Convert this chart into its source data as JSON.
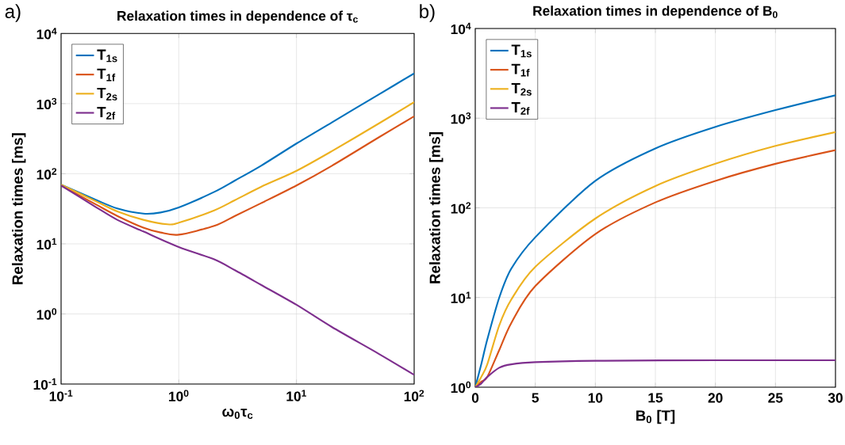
{
  "chart_data": [
    {
      "type": "line",
      "title": "Relaxation times in dependence of τ$_{c}$",
      "xlabel": "ω$_{0}$τ$_{c}$",
      "ylabel": "Relaxation times [ms]",
      "annotations": [
        "a)"
      ],
      "log": "xy",
      "grid": true,
      "legend": "top left",
      "xlim": [
        0.1,
        100
      ],
      "ylim": [
        0.1,
        10000
      ],
      "xticks": [
        {
          "value": 0.1,
          "label": "10$^{-1}$"
        },
        {
          "value": 1,
          "label": "10$^{0}$"
        },
        {
          "value": 10,
          "label": "10$^{1}$"
        },
        {
          "value": 100,
          "label": "10$^{2}$"
        }
      ],
      "yticks": [
        {
          "value": 0.1,
          "label": "10$^{-1}$"
        },
        {
          "value": 1,
          "label": "10$^{0}$"
        },
        {
          "value": 10,
          "label": "10$^{1}$"
        },
        {
          "value": 100,
          "label": "10$^{2}$"
        },
        {
          "value": 1000,
          "label": "10$^{3}$"
        },
        {
          "value": 10000,
          "label": "10$^{4}$"
        }
      ],
      "series": [
        {
          "name": "T$_{1s}$",
          "color": "#0072bd",
          "x": [
            0.1,
            0.2,
            0.3,
            0.5,
            0.7,
            1,
            2,
            3,
            5,
            10,
            20,
            50,
            100
          ],
          "values": [
            70,
            42,
            32,
            27,
            28,
            33,
            55,
            80,
            130,
            270,
            540,
            1350,
            2700
          ]
        },
        {
          "name": "T$_{1f}$",
          "color": "#d95319",
          "x": [
            0.1,
            0.2,
            0.3,
            0.5,
            0.7,
            1,
            2,
            3,
            5,
            10,
            20,
            50,
            100
          ],
          "values": [
            68,
            36,
            25,
            17,
            14.5,
            13.5,
            18,
            25,
            38,
            68,
            130,
            330,
            660
          ]
        },
        {
          "name": "T$_{2s}$",
          "color": "#edb120",
          "x": [
            0.1,
            0.2,
            0.3,
            0.5,
            0.8,
            1,
            2,
            3,
            5,
            10,
            20,
            50,
            100
          ],
          "values": [
            70,
            40,
            29,
            22,
            19,
            20,
            30,
            42,
            65,
            110,
            210,
            520,
            1050
          ]
        },
        {
          "name": "T$_{2f}$",
          "color": "#7e2f8e",
          "x": [
            0.1,
            0.2,
            0.3,
            0.5,
            1,
            2,
            3,
            5,
            10,
            20,
            50,
            100
          ],
          "values": [
            68,
            33,
            22,
            15,
            9,
            6,
            4.2,
            2.6,
            1.35,
            0.65,
            0.27,
            0.135
          ]
        }
      ]
    },
    {
      "type": "line",
      "title": "Relaxation times in dependence of B$_{0}$",
      "xlabel": "B$_{0}$ [T]",
      "ylabel": "Relaxation times [ms]",
      "annotations": [
        "b)"
      ],
      "log": "y",
      "grid": true,
      "legend": "top left",
      "xlim": [
        0,
        30
      ],
      "ylim": [
        1,
        10000
      ],
      "xticks": [
        0,
        5,
        10,
        15,
        20,
        25,
        30
      ],
      "yticks": [
        {
          "value": 1,
          "label": "10$^{0}$"
        },
        {
          "value": 10,
          "label": "10$^{1}$"
        },
        {
          "value": 100,
          "label": "10$^{2}$"
        },
        {
          "value": 1000,
          "label": "10$^{3}$"
        },
        {
          "value": 10000,
          "label": "10$^{4}$"
        }
      ],
      "series": [
        {
          "name": "T$_{1s}$",
          "color": "#0072bd",
          "x": [
            0,
            0.5,
            1,
            2,
            3,
            5,
            10,
            15,
            20,
            25,
            30
          ],
          "values": [
            1,
            1.8,
            3.4,
            10,
            21,
            47,
            200,
            460,
            800,
            1230,
            1800
          ]
        },
        {
          "name": "T$_{1f}$",
          "color": "#d95319",
          "x": [
            0,
            0.5,
            1,
            2,
            3,
            5,
            10,
            15,
            20,
            25,
            30
          ],
          "values": [
            1,
            1.15,
            1.3,
            2.6,
            5.2,
            13.4,
            51,
            115,
            200,
            310,
            440
          ]
        },
        {
          "name": "T$_{2s}$",
          "color": "#edb120",
          "x": [
            0,
            0.5,
            1,
            2,
            3,
            5,
            10,
            15,
            20,
            25,
            30
          ],
          "values": [
            1,
            1.3,
            1.8,
            4.9,
            9.5,
            22,
            76,
            175,
            310,
            490,
            700
          ]
        },
        {
          "name": "T$_{2f}$",
          "color": "#7e2f8e",
          "x": [
            0,
            0.5,
            1,
            2,
            3,
            5,
            10,
            20,
            30
          ],
          "values": [
            1,
            1.1,
            1.3,
            1.65,
            1.8,
            1.9,
            1.97,
            2,
            2
          ]
        }
      ]
    }
  ]
}
